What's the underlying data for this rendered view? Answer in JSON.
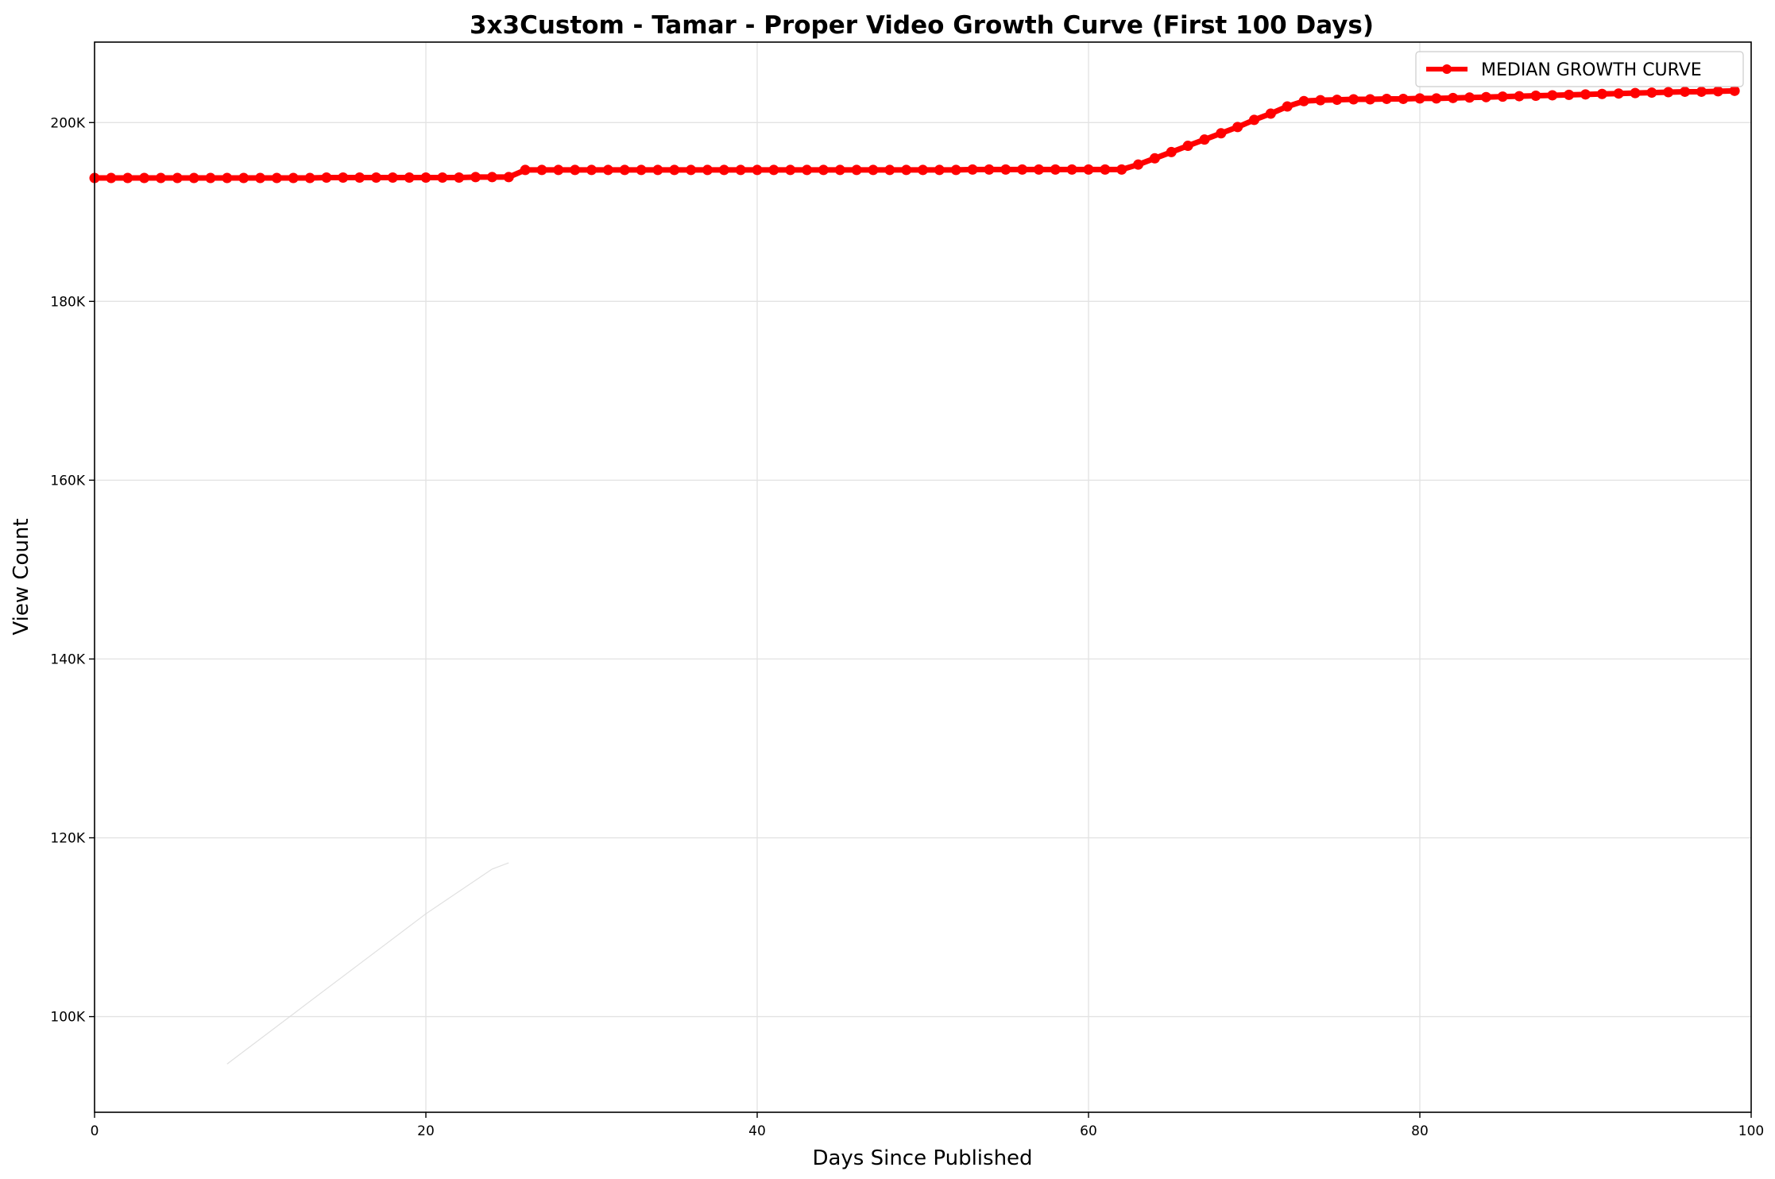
{
  "chart_data": {
    "type": "line",
    "title": "3x3Custom - Tamar - Proper Video Growth Curve (First 100 Days)",
    "xlabel": "Days Since Published",
    "ylabel": "View Count",
    "xlim": [
      0,
      100
    ],
    "ylim": [
      89300,
      209000
    ],
    "x_ticks": [
      0,
      20,
      40,
      60,
      80,
      100
    ],
    "x_tick_labels": [
      "0",
      "20",
      "40",
      "60",
      "80",
      "100"
    ],
    "y_ticks": [
      100000,
      120000,
      140000,
      160000,
      180000,
      200000
    ],
    "y_tick_labels": [
      "100K",
      "120K",
      "140K",
      "160K",
      "180K",
      "200K"
    ],
    "grid": true,
    "legend_position": "upper right",
    "series": [
      {
        "name": "MEDIAN GROWTH CURVE",
        "color": "#ff0000",
        "marker": "circle",
        "x": [
          0,
          1,
          2,
          3,
          4,
          5,
          6,
          7,
          8,
          9,
          10,
          11,
          12,
          13,
          14,
          15,
          16,
          17,
          18,
          19,
          20,
          21,
          22,
          23,
          24,
          25,
          26,
          27,
          28,
          29,
          30,
          31,
          32,
          33,
          34,
          35,
          36,
          37,
          38,
          39,
          40,
          41,
          42,
          43,
          44,
          45,
          46,
          47,
          48,
          49,
          50,
          51,
          52,
          53,
          54,
          55,
          56,
          57,
          58,
          59,
          60,
          61,
          62,
          63,
          64,
          65,
          66,
          67,
          68,
          69,
          70,
          71,
          72,
          73,
          74,
          75,
          76,
          77,
          78,
          79,
          80,
          81,
          82,
          83,
          84,
          85,
          86,
          87,
          88,
          89,
          90,
          91,
          92,
          93,
          94,
          95,
          96,
          97,
          98,
          99
        ],
        "y": [
          193800,
          193800,
          193800,
          193800,
          193800,
          193800,
          193800,
          193800,
          193800,
          193800,
          193800,
          193800,
          193800,
          193800,
          193850,
          193850,
          193850,
          193850,
          193850,
          193850,
          193850,
          193850,
          193850,
          193900,
          193900,
          193900,
          194700,
          194700,
          194700,
          194700,
          194700,
          194700,
          194700,
          194700,
          194700,
          194700,
          194700,
          194700,
          194700,
          194700,
          194700,
          194700,
          194700,
          194700,
          194700,
          194700,
          194700,
          194700,
          194700,
          194700,
          194700,
          194700,
          194700,
          194750,
          194750,
          194750,
          194750,
          194750,
          194750,
          194750,
          194750,
          194750,
          194750,
          195300,
          196000,
          196700,
          197400,
          198100,
          198800,
          199500,
          200300,
          201000,
          201800,
          202400,
          202500,
          202550,
          202600,
          202600,
          202650,
          202650,
          202700,
          202700,
          202750,
          202800,
          202850,
          202900,
          202950,
          203000,
          203050,
          203100,
          203150,
          203200,
          203250,
          203300,
          203350,
          203400,
          203450,
          203450,
          203500,
          203550
        ]
      },
      {
        "name": "",
        "color": "#d8d8d8",
        "marker": "none",
        "x": [
          8,
          12,
          16,
          20,
          24,
          25
        ],
        "y": [
          94700,
          100300,
          105900,
          111500,
          116500,
          117200
        ]
      }
    ]
  }
}
